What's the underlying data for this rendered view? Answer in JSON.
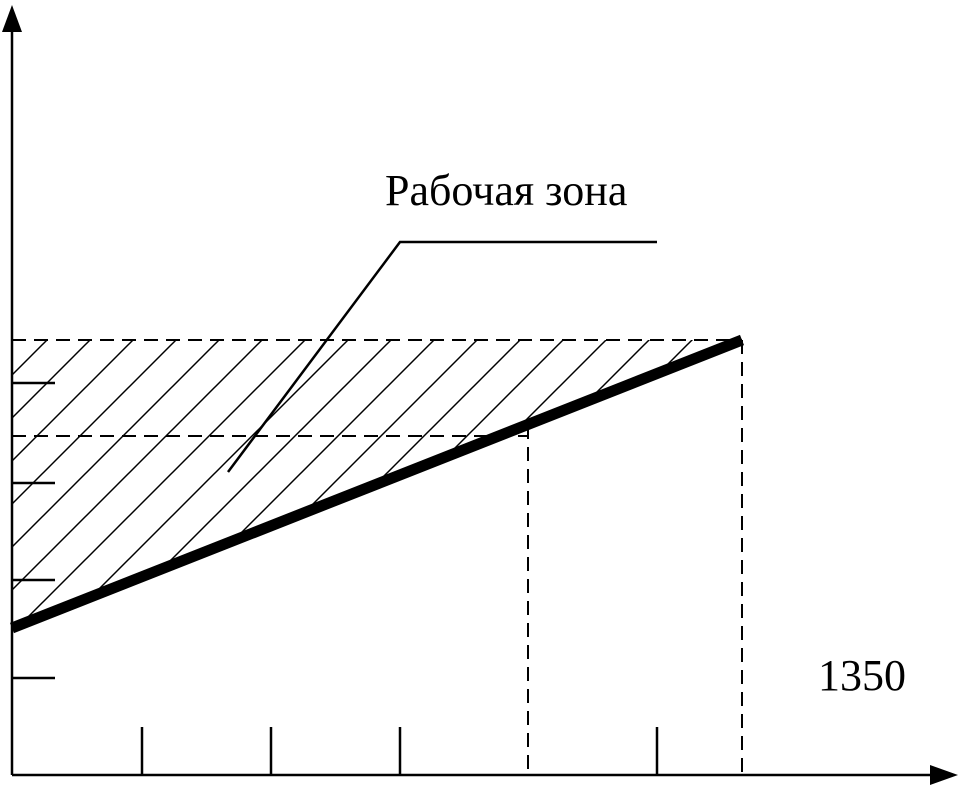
{
  "labels": {
    "zone": "Рабочая зона",
    "value": "1350"
  }
}
